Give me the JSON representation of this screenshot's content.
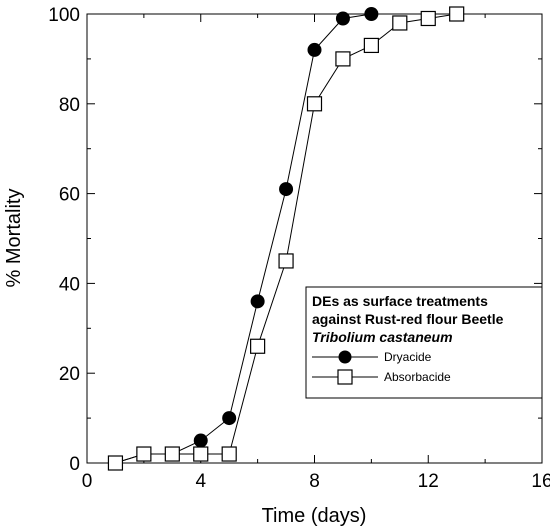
{
  "chart_data": {
    "type": "line",
    "xlabel": "Time (days)",
    "ylabel": "% Mortality",
    "xlim": [
      0,
      16
    ],
    "ylim": [
      0,
      100
    ],
    "xticks": [
      0,
      4,
      8,
      12,
      16
    ],
    "yticks": [
      0,
      20,
      40,
      60,
      80,
      100
    ],
    "grid": false,
    "legend": {
      "position": "bottom-right",
      "title_lines": [
        "DEs as surface treatments",
        "against Rust-red flour Beetle",
        "Tribolium castaneum"
      ]
    },
    "series": [
      {
        "name": "Dryacide",
        "marker": "filled-circle",
        "color": "#000000",
        "x": [
          1,
          2,
          3,
          4,
          5,
          6,
          7,
          8,
          9,
          10
        ],
        "y": [
          0,
          2,
          2,
          5,
          10,
          36,
          61,
          92,
          99,
          100
        ]
      },
      {
        "name": "Absorbacide",
        "marker": "open-square",
        "color": "#000000",
        "x": [
          1,
          2,
          3,
          4,
          5,
          6,
          7,
          8,
          9,
          10,
          11,
          12,
          13
        ],
        "y": [
          0,
          2,
          2,
          2,
          2,
          26,
          45,
          80,
          90,
          93,
          98,
          99,
          100
        ]
      }
    ]
  }
}
